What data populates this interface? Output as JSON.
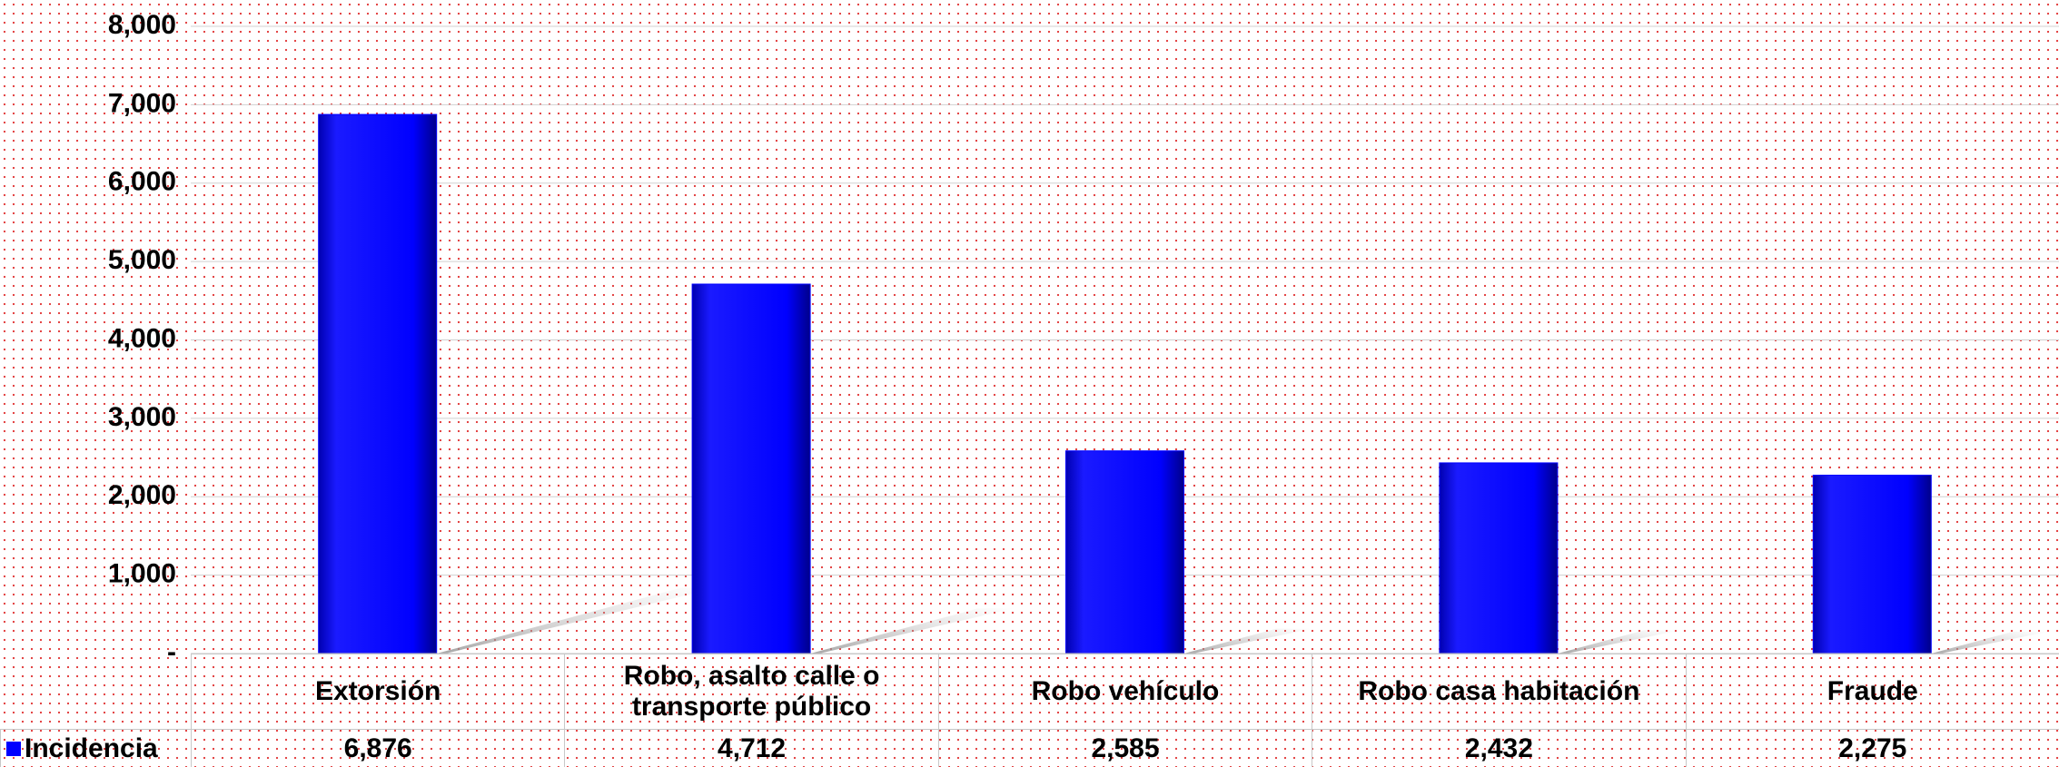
{
  "chart_data": {
    "type": "bar",
    "categories": [
      "Extorsión",
      "Robo, asalto calle o transporte público",
      "Robo vehículo",
      "Robo casa habitación",
      "Fraude"
    ],
    "series": [
      {
        "name": "Incidencia",
        "color": "#0000ff",
        "values": [
          6876,
          4712,
          2585,
          2432,
          2275
        ],
        "value_labels": [
          "6,876",
          "4,712",
          "2,585",
          "2,432",
          "2,275"
        ]
      }
    ],
    "ylim": [
      0,
      8000
    ],
    "yticks": [
      {
        "value": 0,
        "label": "-"
      },
      {
        "value": 1000,
        "label": "1,000"
      },
      {
        "value": 2000,
        "label": "2,000"
      },
      {
        "value": 3000,
        "label": "3,000"
      },
      {
        "value": 4000,
        "label": "4,000"
      },
      {
        "value": 5000,
        "label": "5,000"
      },
      {
        "value": 6000,
        "label": "6,000"
      },
      {
        "value": 7000,
        "label": "7,000"
      },
      {
        "value": 8000,
        "label": "8,000"
      }
    ],
    "grid": true
  }
}
